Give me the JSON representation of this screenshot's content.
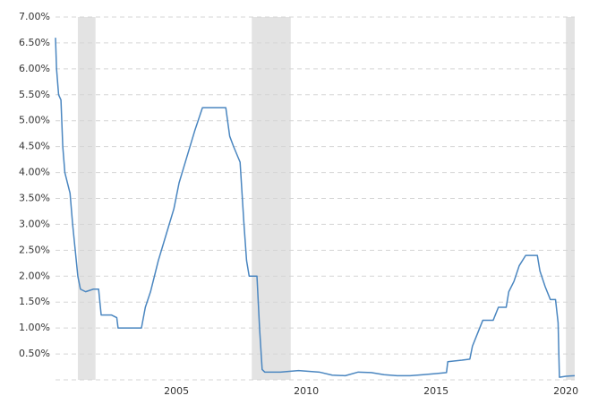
{
  "chart_data": {
    "type": "line",
    "x": [
      2000.34,
      2000.38,
      2000.46,
      2000.55,
      2000.62,
      2000.7,
      2000.8,
      2000.9,
      2001.0,
      2001.1,
      2001.2,
      2001.3,
      2001.5,
      2001.8,
      2002.0,
      2002.1,
      2002.5,
      2002.7,
      2002.75,
      2003.0,
      2003.5,
      2003.65,
      2003.8,
      2004.0,
      2004.3,
      2004.6,
      2004.9,
      2005.1,
      2005.4,
      2005.7,
      2005.9,
      2006.0,
      2006.5,
      2006.9,
      2007.05,
      2007.2,
      2007.45,
      2007.6,
      2007.7,
      2007.8,
      2008.1,
      2008.2,
      2008.3,
      2008.4,
      2009.0,
      2009.7,
      2010.5,
      2011.0,
      2011.5,
      2012.0,
      2012.5,
      2013.0,
      2013.5,
      2014.0,
      2014.5,
      2015.0,
      2015.4,
      2015.45,
      2016.0,
      2016.3,
      2016.4,
      2016.6,
      2016.8,
      2017.2,
      2017.4,
      2017.7,
      2017.8,
      2018.0,
      2018.2,
      2018.45,
      2018.9,
      2019.0,
      2019.2,
      2019.4,
      2019.6,
      2019.7,
      2019.75,
      2020.0,
      2020.34
    ],
    "series": [
      {
        "color": "#4a86c0",
        "values": [
          6.6,
          6.0,
          5.5,
          5.4,
          4.5,
          4.0,
          3.8,
          3.6,
          3.0,
          2.5,
          2.0,
          1.75,
          1.7,
          1.75,
          1.75,
          1.25,
          1.25,
          1.2,
          1.0,
          1.0,
          1.0,
          1.0,
          1.4,
          1.7,
          2.3,
          2.8,
          3.3,
          3.8,
          4.3,
          4.8,
          5.1,
          5.25,
          5.25,
          5.25,
          4.7,
          4.5,
          4.2,
          3.0,
          2.3,
          2.0,
          2.0,
          1.0,
          0.2,
          0.15,
          0.15,
          0.18,
          0.15,
          0.09,
          0.08,
          0.15,
          0.14,
          0.1,
          0.08,
          0.08,
          0.1,
          0.12,
          0.14,
          0.35,
          0.38,
          0.4,
          0.65,
          0.9,
          1.15,
          1.15,
          1.4,
          1.4,
          1.7,
          1.9,
          2.2,
          2.4,
          2.4,
          2.1,
          1.8,
          1.55,
          1.55,
          1.1,
          0.05,
          0.07,
          0.08
        ]
      }
    ],
    "recessions": [
      [
        2001.2,
        2001.88
      ],
      [
        2007.9,
        2009.4
      ],
      [
        2020.0,
        2020.34
      ]
    ],
    "recession_color": "#e3e3e3",
    "xlim": [
      2000.34,
      2020.34
    ],
    "xticks": [
      2005,
      2010,
      2015,
      2020
    ],
    "ylim": [
      0,
      7
    ],
    "yticks": [
      {
        "value": 0.5,
        "label": "0.50%"
      },
      {
        "value": 1,
        "label": "1.00%"
      },
      {
        "value": 1.5,
        "label": "1.50%"
      },
      {
        "value": 2,
        "label": "2.00%"
      },
      {
        "value": 2.5,
        "label": "2.50%"
      },
      {
        "value": 3,
        "label": "3.00%"
      },
      {
        "value": 3.5,
        "label": "3.50%"
      },
      {
        "value": 4,
        "label": "4.00%"
      },
      {
        "value": 4.5,
        "label": "4.50%"
      },
      {
        "value": 5,
        "label": "5.00%"
      },
      {
        "value": 5.5,
        "label": "5.50%"
      },
      {
        "value": 6,
        "label": "6.00%"
      },
      {
        "value": 6.5,
        "label": "6.50%"
      },
      {
        "value": 7,
        "label": "7.00%"
      }
    ],
    "grid": true
  }
}
